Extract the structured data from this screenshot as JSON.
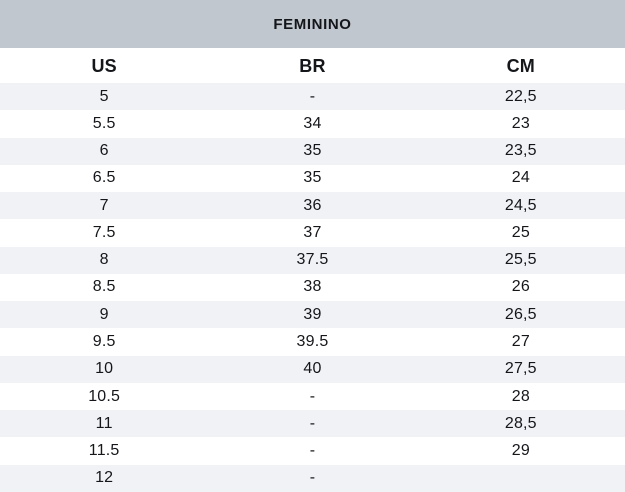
{
  "header": {
    "title": "FEMININO"
  },
  "colors": {
    "band_bg": "#c1c7ce",
    "row_alt_bg": "#f1f2f6",
    "row_bg": "#ffffff",
    "text": "#14161a"
  },
  "chart_data": {
    "type": "table",
    "title": "FEMININO",
    "columns": [
      "US",
      "BR",
      "CM"
    ],
    "rows": [
      [
        "5",
        "-",
        "22,5"
      ],
      [
        "5.5",
        "34",
        "23"
      ],
      [
        "6",
        "35",
        "23,5"
      ],
      [
        "6.5",
        "35",
        "24"
      ],
      [
        "7",
        "36",
        "24,5"
      ],
      [
        "7.5",
        "37",
        "25"
      ],
      [
        "8",
        "37.5",
        "25,5"
      ],
      [
        "8.5",
        "38",
        "26"
      ],
      [
        "9",
        "39",
        "26,5"
      ],
      [
        "9.5",
        "39.5",
        "27"
      ],
      [
        "10",
        "40",
        "27,5"
      ],
      [
        "10.5",
        "-",
        "28"
      ],
      [
        "11",
        "-",
        "28,5"
      ],
      [
        "11.5",
        "-",
        "29"
      ],
      [
        "12",
        "-",
        ""
      ]
    ],
    "layout": {
      "grid": "alternating-row-shading",
      "column_alignment": "center",
      "notes": "CM values use comma decimal separator; US/BR use period"
    }
  }
}
